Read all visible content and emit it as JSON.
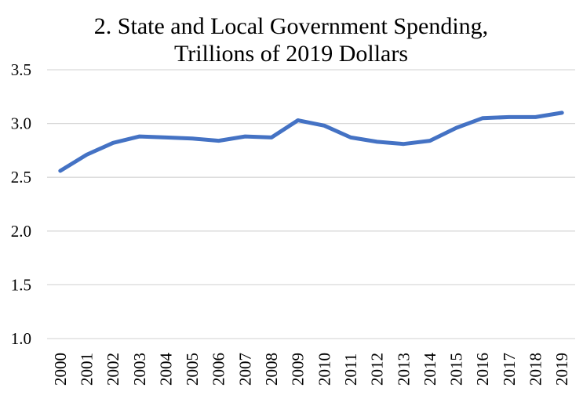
{
  "chart_data": {
    "type": "line",
    "title": "2. State and Local Government Spending,",
    "subtitle": "Trillions of 2019 Dollars",
    "xlabel": "",
    "ylabel": "",
    "categories": [
      "2000",
      "2001",
      "2002",
      "2003",
      "2004",
      "2005",
      "2006",
      "2007",
      "2008",
      "2009",
      "2010",
      "2011",
      "2012",
      "2013",
      "2014",
      "2015",
      "2016",
      "2017",
      "2018",
      "2019"
    ],
    "series": [
      {
        "values": [
          2.56,
          2.71,
          2.82,
          2.88,
          2.87,
          2.86,
          2.84,
          2.88,
          2.87,
          3.03,
          2.98,
          2.87,
          2.83,
          2.81,
          2.84,
          2.96,
          3.05,
          3.06,
          3.06,
          3.1
        ],
        "color": "#4472c4"
      }
    ],
    "ylim": [
      1.0,
      3.5
    ],
    "yticks": [
      "1.0",
      "1.5",
      "2.0",
      "2.5",
      "3.0",
      "3.5"
    ],
    "grid": true,
    "legend": "none"
  }
}
